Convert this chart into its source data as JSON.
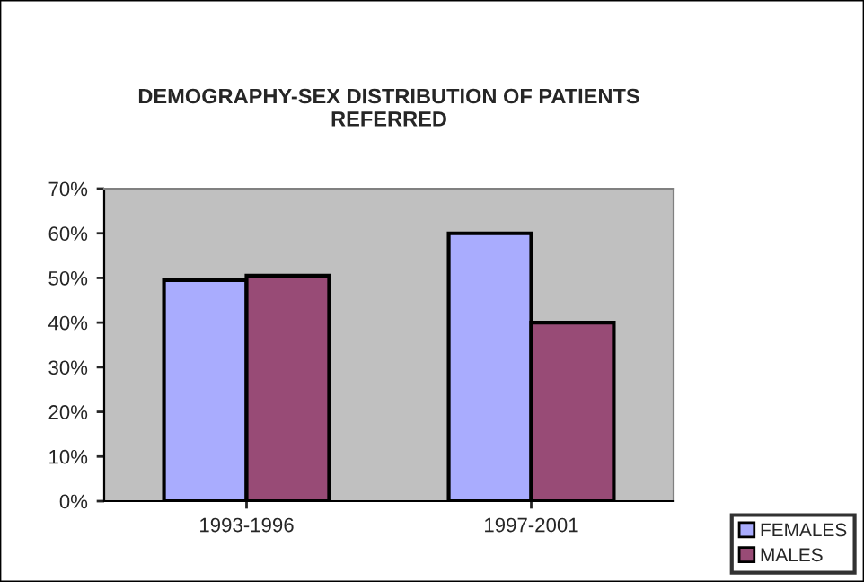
{
  "chart_data": {
    "type": "bar",
    "title": "DEMOGRAPHY-SEX DISTRIBUTION OF PATIENTS\nREFERRED",
    "categories": [
      "1993-1996",
      "1997-2001"
    ],
    "series": [
      {
        "name": "FEMALES",
        "color": "#a9acfe",
        "values": [
          49.5,
          60
        ]
      },
      {
        "name": "MALES",
        "color": "#984b76",
        "values": [
          50.5,
          40
        ]
      }
    ],
    "ylim": [
      0,
      70
    ],
    "yticks": [
      {
        "value": 0,
        "label": "0%"
      },
      {
        "value": 10,
        "label": "10%"
      },
      {
        "value": 20,
        "label": "20%"
      },
      {
        "value": 30,
        "label": "30%"
      },
      {
        "value": 40,
        "label": "40%"
      },
      {
        "value": 50,
        "label": "50%"
      },
      {
        "value": 60,
        "label": "60%"
      },
      {
        "value": 70,
        "label": "70%"
      }
    ],
    "grid": false,
    "legend": "bottom right"
  }
}
